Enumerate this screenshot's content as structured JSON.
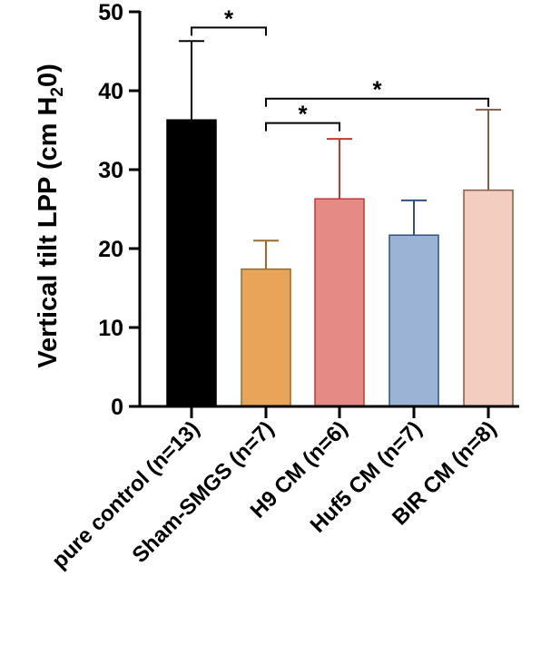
{
  "chart_data": {
    "type": "bar",
    "ylabel": "Vertical tilt LPP (cm H",
    "ylabel_sub": "2",
    "ylabel_tail": "0)",
    "ylim": [
      0,
      50
    ],
    "yticks": [
      0,
      10,
      20,
      30,
      40,
      50
    ],
    "yticks_text": [
      "0",
      "10",
      "20",
      "30",
      "40",
      "50"
    ],
    "grid": false,
    "categories": [
      "pure control (n=13)",
      "Sham-SMGS (n=7)",
      "H9 CM (n=6)",
      "Huf5 CM (n=7)",
      "BIR CM (n=8)"
    ],
    "values": [
      36.3,
      17.4,
      26.3,
      21.7,
      27.4
    ],
    "errors": [
      10.0,
      3.6,
      7.6,
      4.4,
      10.2
    ],
    "fill_colors": [
      "#000000",
      "#e8a55a",
      "#e68a85",
      "#9bb4d5",
      "#f3cdbf"
    ],
    "edge_colors": [
      "#000000",
      "#9a6a2c",
      "#c03a34",
      "#2f4f82",
      "#8a5a44"
    ],
    "significance": [
      {
        "from": 0,
        "to": 1,
        "label": "*",
        "y": 48.0
      },
      {
        "from": 1,
        "to": 2,
        "label": "*",
        "y": 35.9
      },
      {
        "from": 1,
        "to": 4,
        "label": "*",
        "y": 39.0
      }
    ]
  }
}
